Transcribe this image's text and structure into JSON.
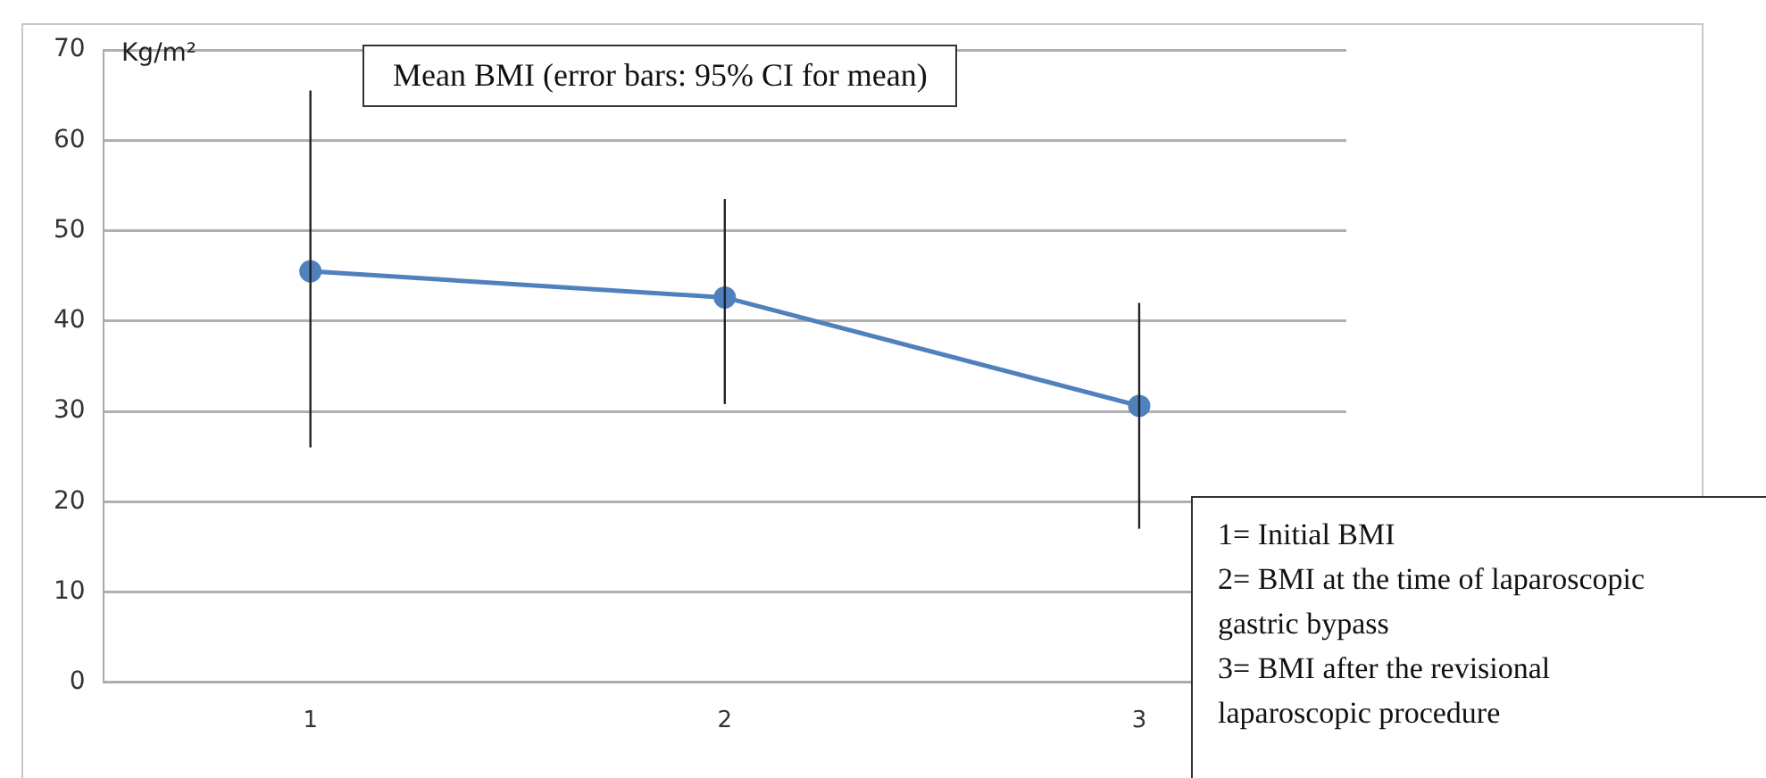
{
  "chart_data": {
    "type": "line",
    "title": "Mean BMI (error bars: 95% CI for mean)",
    "ylabel": "Kg/m²",
    "categories": [
      "1",
      "2",
      "3"
    ],
    "series": [
      {
        "color": "#4f81bd",
        "values": [
          45.5,
          42.6,
          30.6
        ],
        "errors": [
          [
            26,
            65.5
          ],
          [
            30.8,
            53.5
          ],
          [
            17,
            42
          ]
        ]
      }
    ],
    "ylim": [
      0,
      70
    ],
    "yticks": [
      0,
      10,
      20,
      30,
      40,
      50,
      60,
      70
    ],
    "grid": "y",
    "legend": false,
    "marker": "circle",
    "line_style": "solid",
    "annotations": [
      "1= Initial BMI",
      "2= BMI at the time of laparoscopic gastric bypass",
      "3= BMI after the revisional laparoscopic procedure"
    ]
  }
}
